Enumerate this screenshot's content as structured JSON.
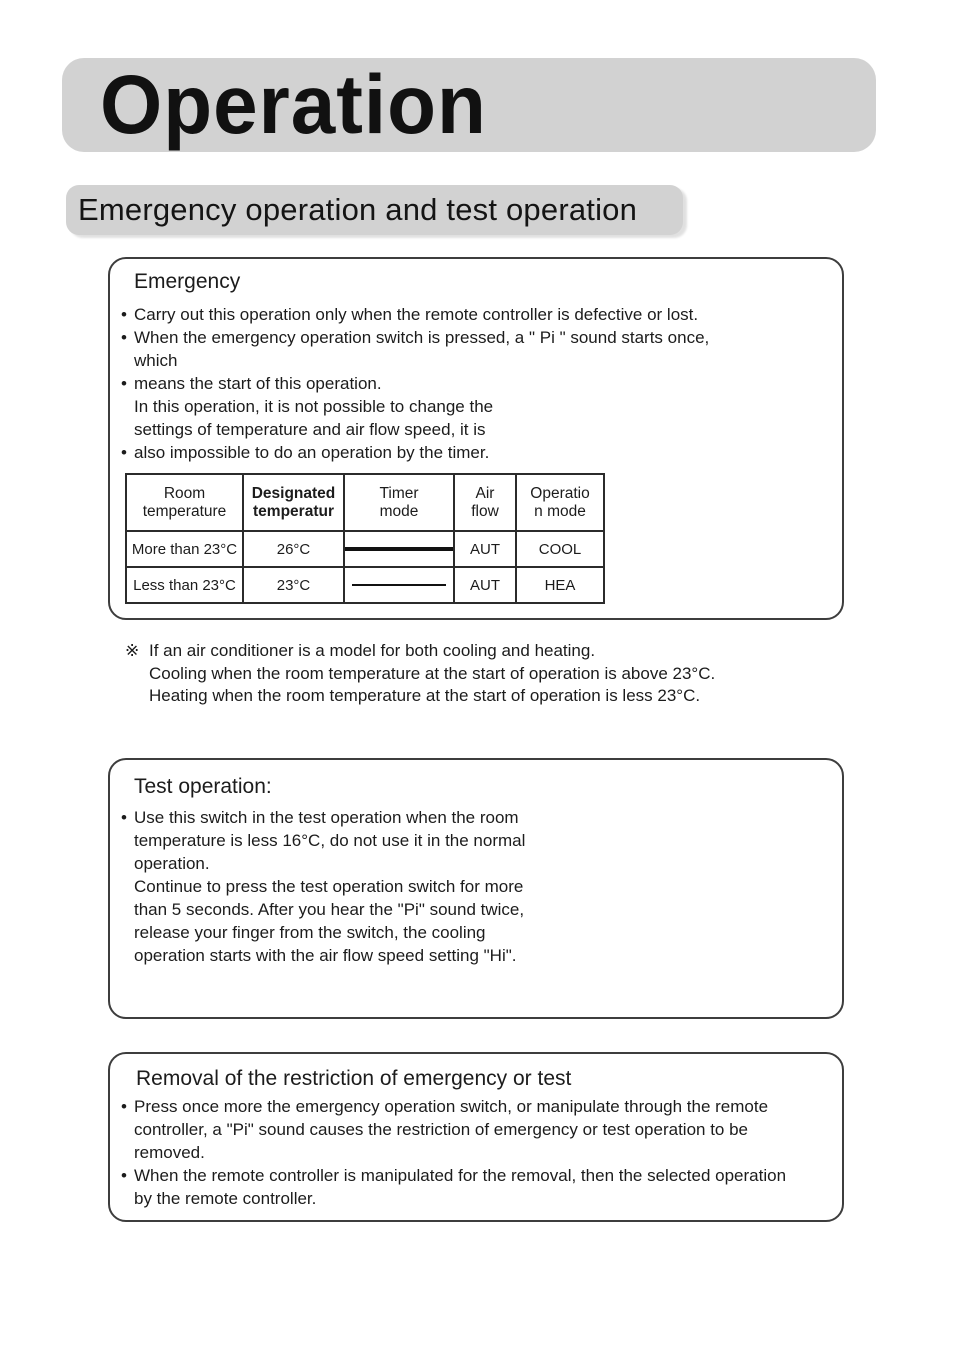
{
  "colors": {
    "bar_gray": "#d2d2d2",
    "box_border": "#3d3d3d",
    "text": "#1c1c1c"
  },
  "page": {
    "title": "Operation",
    "section_title": "Emergency operation and test operation"
  },
  "emergency_box": {
    "heading": "Emergency",
    "bullets": [
      "Carry out this operation only when the remote controller is defective or lost.",
      "When the emergency operation switch is pressed, a \" Pi \" sound starts once,\nwhich",
      "means the start of this operation.\nIn this operation, it is not possible to change the\nsettings of temperature and air flow speed, it is",
      "also impossible to do an operation by the timer."
    ]
  },
  "table": {
    "headers": [
      "Room\ntemperature",
      "Designated\ntemperatur",
      "Timer\nmode",
      "Air\nflow",
      "Operatio\nn mode"
    ],
    "rows": [
      {
        "room_temperature": "More than 23°C",
        "designated_temperature": "26°C",
        "timer_style": "thick",
        "air_flow": "AUT",
        "operation_mode": "COOL"
      },
      {
        "room_temperature": "Less than 23°C",
        "designated_temperature": "23°C",
        "timer_style": "thin",
        "air_flow": "AUT",
        "operation_mode": "HEA"
      }
    ]
  },
  "note": {
    "marker": "※",
    "text": "If an air conditioner is a model for both cooling and heating.\nCooling when the room temperature at the start of operation is above 23°C.\nHeating when the room temperature at the start of operation is less 23°C."
  },
  "test_box": {
    "heading": "Test operation:",
    "bullets": [
      "Use this switch in the test operation when the room\ntemperature is less 16°C, do not use it in the normal\noperation.\nContinue to press the test operation switch for more\nthan 5 seconds. After you hear the \"Pi\" sound twice,\nrelease your finger from the switch, the cooling\noperation starts with the air flow speed setting \"Hi\"."
    ]
  },
  "removal_box": {
    "heading": "Removal of the restriction of emergency or test",
    "bullets": [
      "Press once more the emergency operation switch, or manipulate through the remote\ncontroller, a \"Pi\" sound causes the restriction of emergency or test operation to be\nremoved.",
      "When the remote controller is manipulated for the removal, then the selected operation\nby the remote controller."
    ]
  }
}
